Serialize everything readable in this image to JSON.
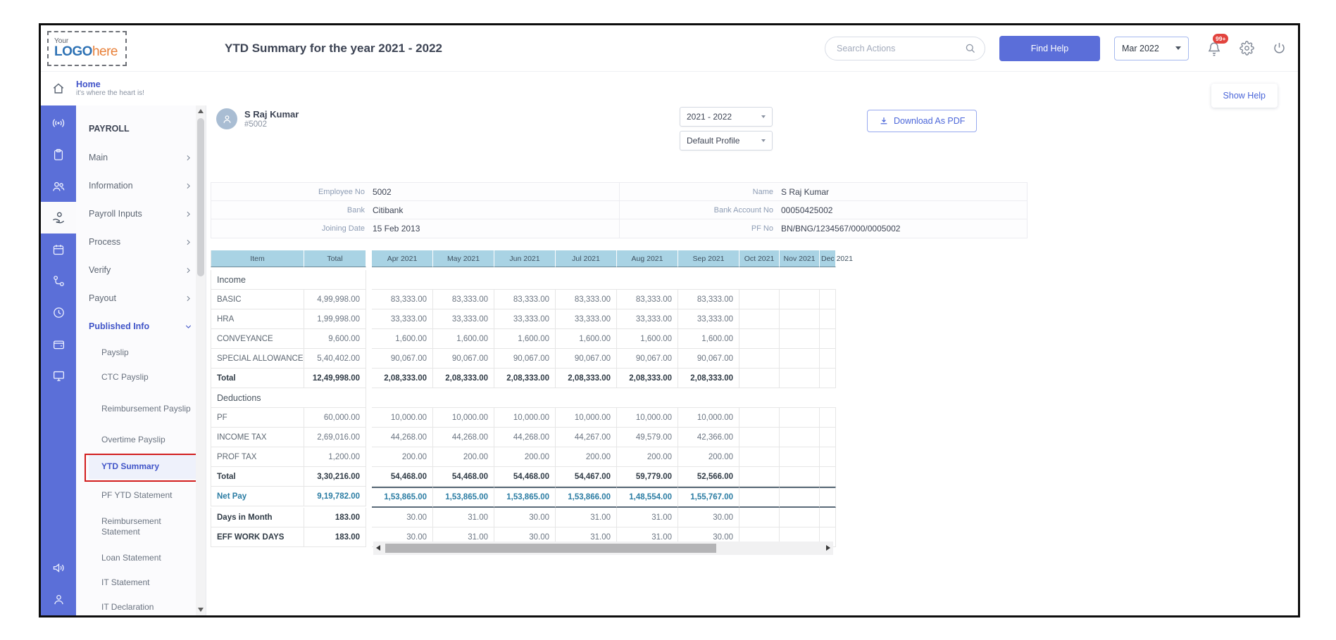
{
  "logo": {
    "top": "Your",
    "main": "LOGO",
    "accent": "here"
  },
  "header": {
    "title": "YTD Summary for the year 2021 - 2022",
    "search_placeholder": "Search Actions",
    "find_help": "Find Help",
    "month_selector": "Mar 2022",
    "notification_badge": "99+"
  },
  "show_help": "Show Help",
  "sidebar": {
    "home": {
      "label": "Home",
      "subtitle": "it's where the heart is!"
    },
    "section": "PAYROLL",
    "items": [
      {
        "label": "Main"
      },
      {
        "label": "Information"
      },
      {
        "label": "Payroll Inputs"
      },
      {
        "label": "Process"
      },
      {
        "label": "Verify"
      },
      {
        "label": "Payout"
      }
    ],
    "published_info": "Published Info",
    "sub_items": [
      {
        "label": "Payslip",
        "lines": 1
      },
      {
        "label": "CTC Payslip",
        "lines": 1
      },
      {
        "label": "Reimbursement Payslip",
        "lines": 2
      },
      {
        "label": "Overtime Payslip",
        "lines": 1
      },
      {
        "label": "YTD Summary",
        "lines": 1,
        "active": true
      },
      {
        "label": "PF YTD Statement",
        "lines": 1
      },
      {
        "label": "Reimbursement Statement",
        "lines": 2
      },
      {
        "label": "Loan Statement",
        "lines": 1
      },
      {
        "label": "IT Statement",
        "lines": 1
      },
      {
        "label": "IT Declaration",
        "lines": 1
      }
    ],
    "rail_icons_top": [
      "broadcast",
      "clipboard",
      "people",
      "payroll-hand",
      "calendar",
      "hierarchy",
      "clock",
      "wallet",
      "monitor"
    ],
    "rail_icons_bottom": [
      "speaker",
      "person"
    ],
    "rail_active_icon": "payroll-hand"
  },
  "employee": {
    "name": "S Raj Kumar",
    "id": "#5002"
  },
  "filters": {
    "year": "2021 - 2022",
    "profile": "Default Profile",
    "download_pdf": "Download As PDF"
  },
  "info_table": {
    "rows": [
      {
        "left_label": "Employee No",
        "left_value": "5002",
        "right_label": "Name",
        "right_value": "S Raj Kumar"
      },
      {
        "left_label": "Bank",
        "left_value": "Citibank",
        "right_label": "Bank Account No",
        "right_value": "00050425002"
      },
      {
        "left_label": "Joining Date",
        "left_value": "15 Feb 2013",
        "right_label": "PF No",
        "right_value": "BN/BNG/1234567/000/0005002"
      }
    ]
  },
  "ytd_table": {
    "item_header": "Item",
    "total_header": "Total",
    "months": [
      "Apr 2021",
      "May 2021",
      "Jun 2021",
      "Jul 2021",
      "Aug 2021",
      "Sep 2021",
      "Oct 2021",
      "Nov 2021",
      "Dec 2021"
    ],
    "rows": [
      {
        "type": "section",
        "label": "Income"
      },
      {
        "type": "item",
        "label": "BASIC",
        "total": "4,99,998.00",
        "values": [
          "83,333.00",
          "83,333.00",
          "83,333.00",
          "83,333.00",
          "83,333.00",
          "83,333.00"
        ]
      },
      {
        "type": "item",
        "label": "HRA",
        "total": "1,99,998.00",
        "values": [
          "33,333.00",
          "33,333.00",
          "33,333.00",
          "33,333.00",
          "33,333.00",
          "33,333.00"
        ]
      },
      {
        "type": "item",
        "label": "CONVEYANCE",
        "total": "9,600.00",
        "values": [
          "1,600.00",
          "1,600.00",
          "1,600.00",
          "1,600.00",
          "1,600.00",
          "1,600.00"
        ]
      },
      {
        "type": "item",
        "label": "SPECIAL ALLOWANCE",
        "total": "5,40,402.00",
        "values": [
          "90,067.00",
          "90,067.00",
          "90,067.00",
          "90,067.00",
          "90,067.00",
          "90,067.00"
        ]
      },
      {
        "type": "total",
        "label": "Total",
        "total": "12,49,998.00",
        "values": [
          "2,08,333.00",
          "2,08,333.00",
          "2,08,333.00",
          "2,08,333.00",
          "2,08,333.00",
          "2,08,333.00"
        ]
      },
      {
        "type": "section",
        "label": "Deductions"
      },
      {
        "type": "item",
        "label": "PF",
        "total": "60,000.00",
        "values": [
          "10,000.00",
          "10,000.00",
          "10,000.00",
          "10,000.00",
          "10,000.00",
          "10,000.00"
        ]
      },
      {
        "type": "item",
        "label": "INCOME TAX",
        "total": "2,69,016.00",
        "values": [
          "44,268.00",
          "44,268.00",
          "44,268.00",
          "44,267.00",
          "49,579.00",
          "42,366.00"
        ]
      },
      {
        "type": "item",
        "label": "PROF TAX",
        "total": "1,200.00",
        "values": [
          "200.00",
          "200.00",
          "200.00",
          "200.00",
          "200.00",
          "200.00"
        ]
      },
      {
        "type": "total",
        "label": "Total",
        "total": "3,30,216.00",
        "values": [
          "54,468.00",
          "54,468.00",
          "54,468.00",
          "54,467.00",
          "59,779.00",
          "52,566.00"
        ]
      },
      {
        "type": "netpay",
        "label": "Net Pay",
        "total": "9,19,782.00",
        "values": [
          "1,53,865.00",
          "1,53,865.00",
          "1,53,865.00",
          "1,53,866.00",
          "1,48,554.00",
          "1,55,767.00"
        ]
      },
      {
        "type": "stat",
        "label": "Days in Month",
        "total": "183.00",
        "values": [
          "30.00",
          "31.00",
          "30.00",
          "31.00",
          "31.00",
          "30.00"
        ]
      },
      {
        "type": "stat",
        "label": "EFF WORK DAYS",
        "total": "183.00",
        "values": [
          "30.00",
          "31.00",
          "30.00",
          "31.00",
          "31.00",
          "30.00"
        ]
      }
    ]
  },
  "colors": {
    "rail_blue": "#5b6fd8",
    "accent_blue": "#4155c8",
    "button_blue": "#5b6ed9",
    "table_header_bg": "#a9d3e4",
    "netpay_text": "#2a7ca3",
    "badge_red": "#e2443e",
    "highlight_red": "#d21d1d"
  }
}
